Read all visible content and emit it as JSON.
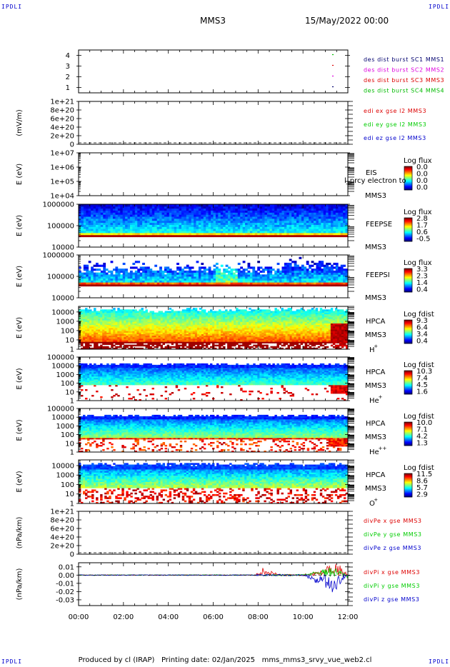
{
  "corner_mark": "IPDLI",
  "header": {
    "spacecraft": "MMS3",
    "date": "15/May/2022 00:00"
  },
  "footer": {
    "producer": "Produced by cl (IRAP)",
    "printing": "Printing date: 02/Jan/2025",
    "file": "mms_mms3_srvy_vue_web2.cl"
  },
  "colors": {
    "c1": "#00006e",
    "c2": "#dd00dd",
    "c3": "#dd0000",
    "c4": "#00bb00",
    "x": "#dd0000",
    "y": "#00cc00",
    "z": "#0000cc"
  },
  "chart_data": [
    {
      "type": "line",
      "panel": "burst",
      "yticks": [
        "1",
        "2",
        "3",
        "4"
      ],
      "ylim": [
        0.5,
        4.5
      ],
      "legend": [
        "des dist burst SC1 MMS1",
        "des dist burst SC2 MMS2",
        "des dist burst SC3 MMS3",
        "des dist burst SC4 MMS4"
      ],
      "markers": [
        {
          "spacecraft": 4,
          "time_h": 11.3,
          "color": "#00bb00"
        },
        {
          "spacecraft": 3,
          "time_h": 11.3,
          "color": "#dd0000"
        },
        {
          "spacecraft": 2,
          "time_h": 11.3,
          "color": "#dd00dd"
        },
        {
          "spacecraft": 1,
          "time_h": 11.3,
          "color": "#00006e"
        }
      ]
    },
    {
      "type": "line",
      "panel": "edi",
      "ylabel": "(mV/m)",
      "yticks": [
        "0",
        "2e+20",
        "4e+20",
        "6e+20",
        "8e+20",
        "1e+21"
      ],
      "ylim": [
        0,
        1e+21
      ],
      "legend": [
        "edi ex gse l2 MMS3",
        "edi ey gse l2 MMS3",
        "edi ez gse l2 MMS3"
      ],
      "series": [
        {
          "name": "edi ex gse l2 MMS3",
          "values": []
        },
        {
          "name": "edi ey gse l2 MMS3",
          "values": []
        },
        {
          "name": "edi ez gse l2 MMS3",
          "values": []
        }
      ],
      "zero_line": true
    },
    {
      "type": "heatmap",
      "panel": "eis",
      "ylabel": "E (eV)",
      "yticks": [
        "1e+04",
        "1e+05",
        "1e+06",
        "1e+07"
      ],
      "ylim": [
        10000.0,
        10000000.0
      ],
      "log_y": true,
      "labels": [
        "EIS",
        "MMS3"
      ],
      "overlay_text": "l_prcy electron to",
      "colorbar_title": "Log flux",
      "colorbar_ticks": [
        "0.0",
        "0.0",
        "0.0",
        "0.0"
      ]
    },
    {
      "type": "heatmap",
      "panel": "feepse",
      "ylabel": "E (eV)",
      "yticks": [
        "10000",
        "100000",
        "1000000"
      ],
      "ylim": [
        10000,
        1000000
      ],
      "log_y": true,
      "labels": [
        "FEEPSE",
        "MMS3"
      ],
      "colorbar_title": "Log flux",
      "colorbar_ticks": [
        "2.8",
        "1.7",
        "0.6",
        "-0.5"
      ]
    },
    {
      "type": "heatmap",
      "panel": "feepsi",
      "ylabel": "E (eV)",
      "yticks": [
        "10000",
        "100000",
        "1000000"
      ],
      "ylim": [
        10000,
        1000000
      ],
      "log_y": true,
      "labels": [
        "FEEPSI",
        "MMS3"
      ],
      "colorbar_title": "Log flux",
      "colorbar_ticks": [
        "3.3",
        "2.3",
        "1.4",
        "0.4"
      ]
    },
    {
      "type": "heatmap",
      "panel": "hpca_h",
      "ylabel": "E (eV)",
      "yticks": [
        "1",
        "10",
        "100",
        "1000",
        "10000"
      ],
      "ylim": [
        1,
        40000
      ],
      "log_y": true,
      "labels": [
        "HPCA",
        "MMS3"
      ],
      "species": "H",
      "charge": "+",
      "colorbar_title": "Log fdist",
      "colorbar_ticks": [
        "9.3",
        "6.4",
        "3.4",
        "0.4"
      ]
    },
    {
      "type": "heatmap",
      "panel": "hpca_he",
      "ylabel": "E (eV)",
      "yticks": [
        "1",
        "10",
        "100",
        "1000",
        "10000",
        "100000"
      ],
      "ylim": [
        1,
        100000
      ],
      "log_y": true,
      "labels": [
        "HPCA",
        "MMS3"
      ],
      "species": "He",
      "charge": "+",
      "colorbar_title": "Log fdist",
      "colorbar_ticks": [
        "10.3",
        "7.4",
        "4.5",
        "1.6"
      ]
    },
    {
      "type": "heatmap",
      "panel": "hpca_hepp",
      "ylabel": "E (eV)",
      "yticks": [
        "1",
        "10",
        "100",
        "1000",
        "10000",
        "100000"
      ],
      "ylim": [
        1,
        100000
      ],
      "log_y": true,
      "labels": [
        "HPCA",
        "MMS3"
      ],
      "species": "He",
      "charge": "++",
      "colorbar_title": "Log fdist",
      "colorbar_ticks": [
        "10.0",
        "7.1",
        "4.2",
        "1.3"
      ]
    },
    {
      "type": "heatmap",
      "panel": "hpca_o",
      "ylabel": "E (eV)",
      "yticks": [
        "1",
        "10",
        "100",
        "1000",
        "10000"
      ],
      "ylim": [
        1,
        40000
      ],
      "log_y": true,
      "labels": [
        "HPCA",
        "MMS3"
      ],
      "species": "O",
      "charge": "+",
      "colorbar_title": "Log fdist",
      "colorbar_ticks": [
        "11.5",
        "8.6",
        "5.7",
        "2.9"
      ]
    },
    {
      "type": "line",
      "panel": "divpe",
      "ylabel": "(nPa/km)",
      "yticks": [
        "0",
        "2e+20",
        "4e+20",
        "6e+20",
        "8e+20",
        "1e+21"
      ],
      "ylim": [
        0,
        1e+21
      ],
      "legend": [
        "divPe x gse MMS3",
        "divPe y gse MMS3",
        "divPe z gse MMS3"
      ],
      "series": [
        {
          "name": "divPe x gse MMS3",
          "values": []
        },
        {
          "name": "divPe y gse MMS3",
          "values": []
        },
        {
          "name": "divPe z gse MMS3",
          "values": []
        }
      ],
      "zero_line": true
    },
    {
      "type": "line",
      "panel": "divpi",
      "ylabel": "(nPa/km)",
      "yticks": [
        "-0.03",
        "-0.02",
        "-0.01",
        "0.00",
        "0.01"
      ],
      "ylim": [
        -0.037,
        0.015
      ],
      "legend": [
        "divPi x gse MMS3",
        "divPi y gse MMS3",
        "divPi z gse MMS3"
      ],
      "series": [
        {
          "name": "divPi x gse MMS3",
          "x": [
            0,
            2,
            4,
            6,
            7.9,
            8.2,
            9,
            10,
            10.8,
            11.3,
            11.6,
            12
          ],
          "values": [
            0,
            0,
            0,
            0,
            0,
            0.008,
            0,
            0,
            0.004,
            0.012,
            0.01,
            0
          ]
        },
        {
          "name": "divPi y gse MMS3",
          "x": [
            0,
            2,
            4,
            6,
            8,
            10,
            11.3,
            11.6,
            12
          ],
          "values": [
            0,
            0,
            0,
            0,
            0,
            0,
            0.008,
            0.006,
            0
          ]
        },
        {
          "name": "divPi z gse MMS3",
          "x": [
            0,
            2,
            4,
            6,
            8,
            10,
            11.4,
            11.6,
            12
          ],
          "values": [
            0,
            0,
            0,
            0,
            0,
            0,
            -0.02,
            -0.012,
            0
          ]
        }
      ]
    }
  ],
  "time_axis": {
    "xlim": [
      0,
      12
    ],
    "ticks": [
      "00:00",
      "02:00",
      "04:00",
      "06:00",
      "08:00",
      "10:00",
      "12:00"
    ]
  }
}
